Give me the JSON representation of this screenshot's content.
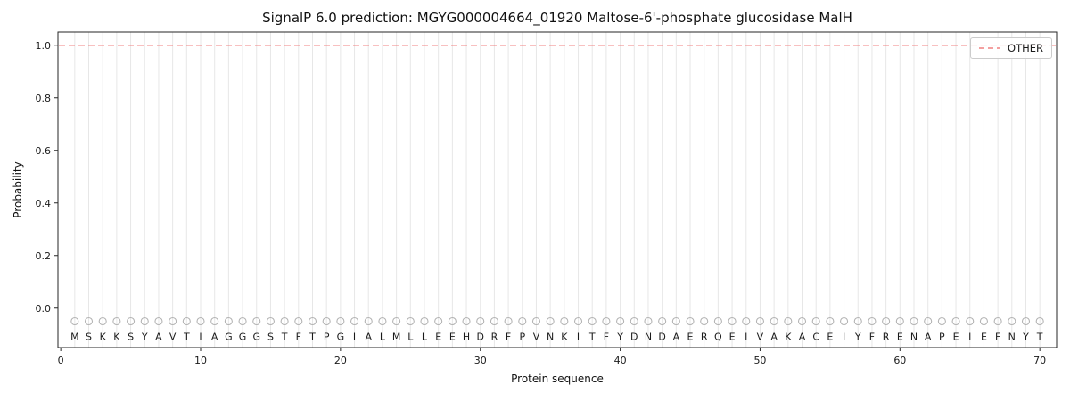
{
  "chart_data": {
    "type": "line",
    "title": "SignalP 6.0 prediction: MGYG000004664_01920 Maltose-6'-phosphate glucosidase MalH",
    "xlabel": "Protein sequence",
    "ylabel": "Probability",
    "xlim": [
      -0.2,
      71.2
    ],
    "ylim": [
      -0.15,
      1.05
    ],
    "xticks": [
      0,
      10,
      20,
      30,
      40,
      50,
      60,
      70
    ],
    "yticks": [
      0.0,
      0.2,
      0.4,
      0.6,
      0.8,
      1.0
    ],
    "grid": "vertical-line-per-residue",
    "residues": "MSKKSYAVTIAGGGSTFTPGIALMLLEEHDRFPVNKITFYDNDAERQEIVAKACEIYFRENAPEIEFNYT",
    "series": [
      {
        "name": "OTHER",
        "type": "horizontal-line",
        "value": 1.0,
        "style": "dashed",
        "color": "#f08080"
      }
    ],
    "marker_row": {
      "glyph": "open-circle",
      "y": -0.05
    },
    "letters_y": -0.108,
    "legend": {
      "position": "upper right",
      "entries": [
        "OTHER"
      ]
    }
  },
  "colors": {
    "grid": "#e7e7e7",
    "spine": "#262626",
    "text": "#1a1a1a",
    "marker": "#b3b3b3",
    "legend_border": "#cccccc"
  }
}
